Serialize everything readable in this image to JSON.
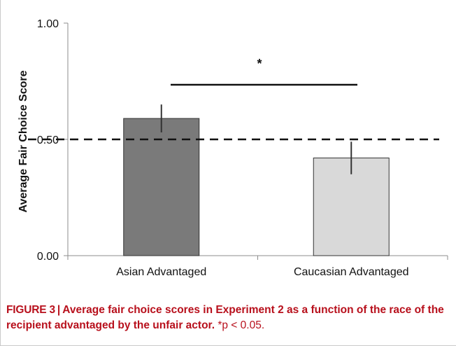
{
  "chart_data": {
    "type": "bar",
    "categories": [
      "Asian Advantaged",
      "Caucasian Advantaged"
    ],
    "values": [
      0.59,
      0.42
    ],
    "errors": [
      0.06,
      0.07
    ],
    "ylabel": "Average Fair Choice Score",
    "ylim": [
      0,
      1
    ],
    "yticks": [
      "0.00",
      "0.50",
      "1.00"
    ],
    "tick_values": [
      0,
      0.5,
      1
    ],
    "bar_colors": [
      "#7a7a7a",
      "#d9d9d9"
    ],
    "reference_line": {
      "y": 0.5,
      "style": "dashed"
    },
    "significance": {
      "label": "*"
    },
    "grid": false
  },
  "caption": {
    "figure_label": "FIGURE 3",
    "separator": "|",
    "text": "Average fair choice scores in Experiment 2 as a function of the race of the recipient advantaged by the unfair actor.",
    "note": "*p < 0.05."
  }
}
